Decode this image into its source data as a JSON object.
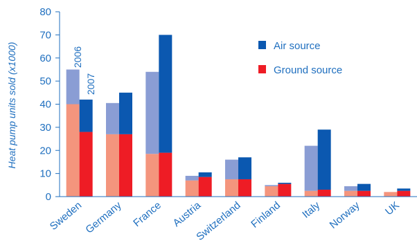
{
  "chart_data": {
    "type": "bar",
    "title": "",
    "xlabel": "",
    "ylabel": "Heat pump units sold (x1000)",
    "ylim": [
      0,
      80
    ],
    "yticks": [
      0,
      10,
      20,
      30,
      40,
      50,
      60,
      70,
      80
    ],
    "grid": false,
    "legend_position": "top-right",
    "categories": [
      "Sweden",
      "Germany",
      "France",
      "Austria",
      "Switzerland",
      "Finland",
      "Italy",
      "Norway",
      "UK"
    ],
    "years": [
      "2006",
      "2007"
    ],
    "series": [
      {
        "name": "Air source",
        "values_2006": [
          15,
          13.5,
          35.5,
          2,
          8.5,
          0.5,
          19.5,
          2,
          0
        ],
        "values_2007": [
          14,
          18,
          51,
          2,
          9.5,
          0.5,
          26,
          3,
          1
        ]
      },
      {
        "name": "Ground source",
        "values_2006": [
          40,
          27,
          18.5,
          7,
          7.5,
          4.5,
          2.5,
          2.5,
          2
        ],
        "values_2007": [
          28,
          27,
          19,
          8.5,
          7.5,
          5.5,
          3,
          2.5,
          2.5
        ]
      }
    ],
    "colors": {
      "air_2006": "#8a9dd4",
      "air_2007": "#0b58b0",
      "ground_2006": "#f4957d",
      "ground_2007": "#ee1c25",
      "axis": "#1f6fbf"
    }
  }
}
